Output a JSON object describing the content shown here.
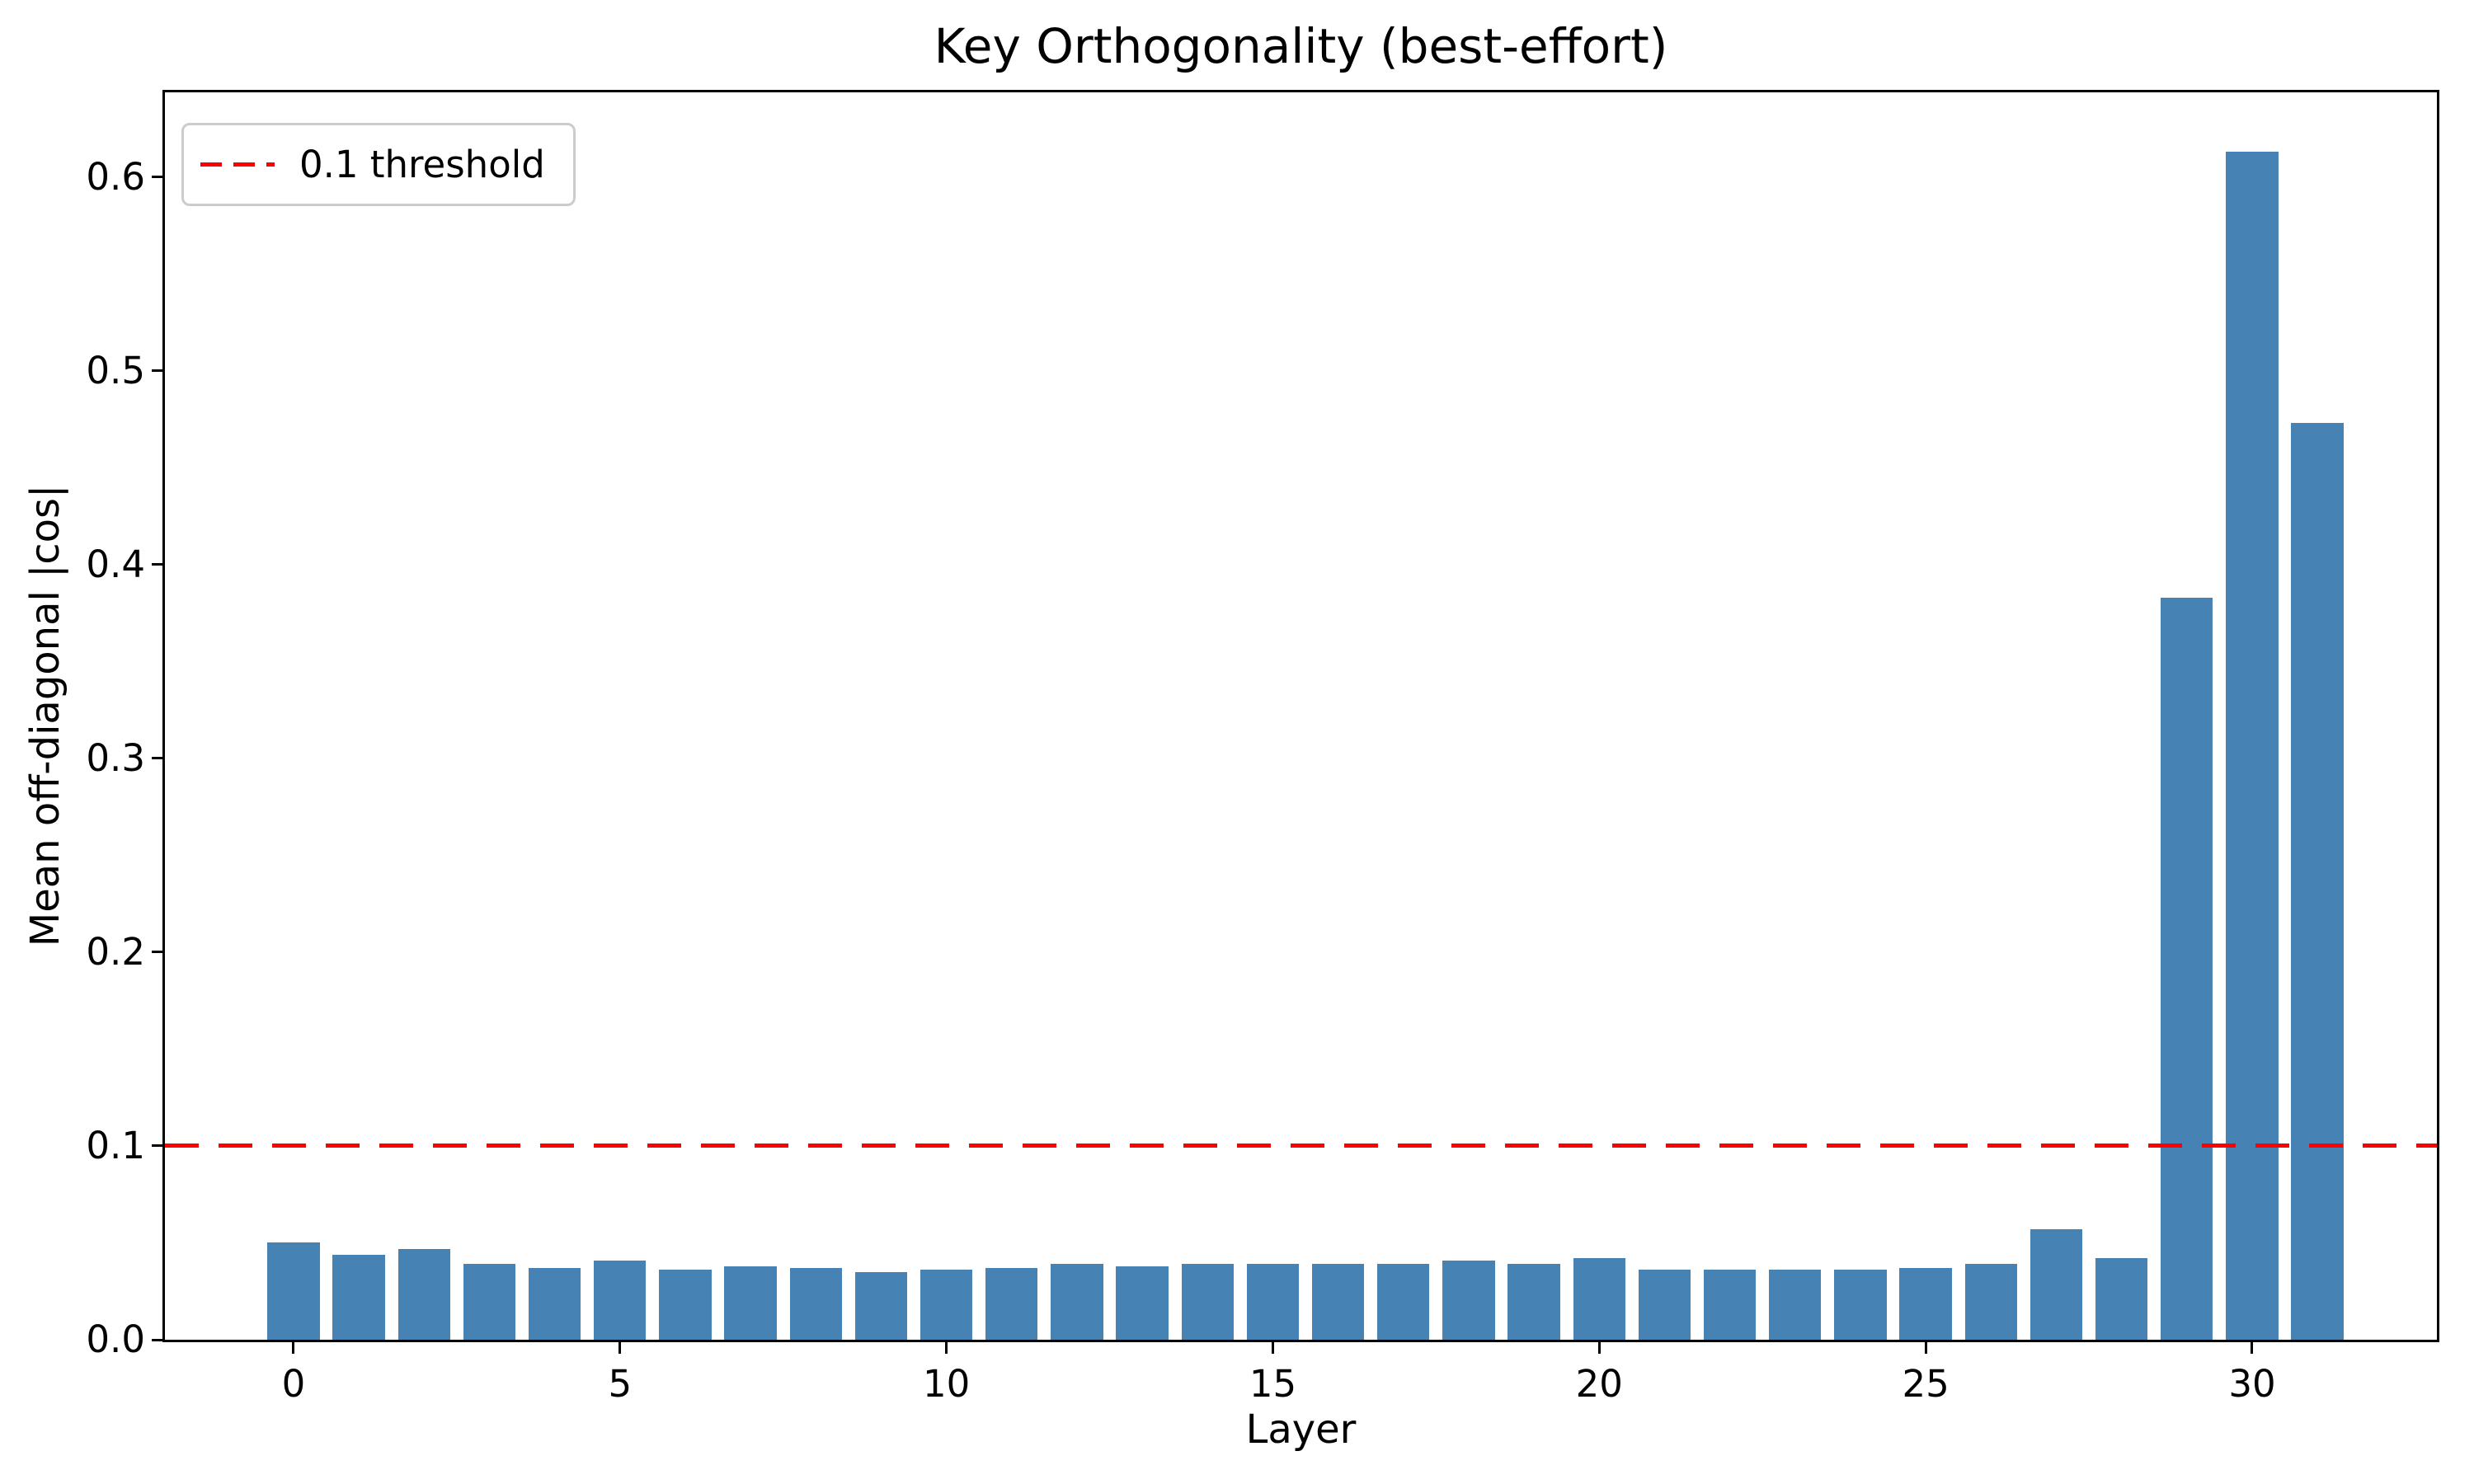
{
  "chart_data": {
    "type": "bar",
    "title": "Key Orthogonality (best-effort)",
    "xlabel": "Layer",
    "ylabel": "Mean off-diagonal |cos|",
    "categories": [
      0,
      1,
      2,
      3,
      4,
      5,
      6,
      7,
      8,
      9,
      10,
      11,
      12,
      13,
      14,
      15,
      16,
      17,
      18,
      19,
      20,
      21,
      22,
      23,
      24,
      25,
      26,
      27,
      28,
      29,
      30,
      31
    ],
    "values": [
      0.05,
      0.044,
      0.047,
      0.039,
      0.037,
      0.041,
      0.036,
      0.038,
      0.037,
      0.035,
      0.036,
      0.037,
      0.039,
      0.038,
      0.039,
      0.039,
      0.039,
      0.039,
      0.041,
      0.039,
      0.042,
      0.036,
      0.036,
      0.036,
      0.036,
      0.037,
      0.039,
      0.057,
      0.042,
      0.383,
      0.613,
      0.473
    ],
    "bar_color": "#4682b4",
    "bar_width_units": 0.8,
    "threshold": {
      "value": 0.1,
      "label": "0.1 threshold",
      "color": "#ff0000",
      "style": "dashed"
    },
    "xlim": [
      -1.97,
      32.83
    ],
    "ylim": [
      0,
      0.6437
    ],
    "xticks": [
      0,
      5,
      10,
      15,
      20,
      25,
      30
    ],
    "yticks": [
      {
        "value": 0.0,
        "label": "0.0"
      },
      {
        "value": 0.1,
        "label": "0.1"
      },
      {
        "value": 0.2,
        "label": "0.2"
      },
      {
        "value": 0.3,
        "label": "0.3"
      },
      {
        "value": 0.4,
        "label": "0.4"
      },
      {
        "value": 0.5,
        "label": "0.5"
      },
      {
        "value": 0.6,
        "label": "0.6"
      }
    ],
    "grid": false,
    "legend_position": "upper left"
  },
  "legend": {
    "items": [
      {
        "label": "0.1 threshold",
        "color": "#ff0000"
      }
    ]
  }
}
